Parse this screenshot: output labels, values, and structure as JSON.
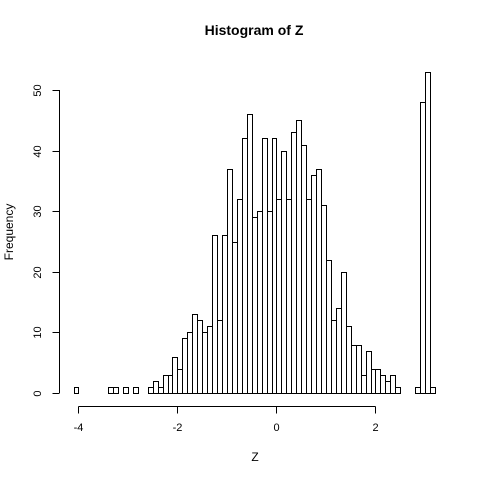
{
  "chart_data": {
    "type": "bar",
    "title": "Histogram of Z",
    "xlabel": "Z",
    "ylabel": "Frequency",
    "x_ticks": [
      -4,
      -2,
      0,
      2
    ],
    "x_tick_labels": [
      "-4",
      "-2",
      "0",
      "2"
    ],
    "y_ticks": [
      0,
      10,
      20,
      30,
      40,
      50
    ],
    "y_tick_labels": [
      "0",
      "10",
      "20",
      "30",
      "40",
      "50"
    ],
    "xlim": [
      -4.2,
      3.2
    ],
    "ylim": [
      0,
      55
    ],
    "bin_width": 0.1,
    "bins": [
      {
        "x0": -4.1,
        "x1": -4.0,
        "count": 1
      },
      {
        "x0": -3.4,
        "x1": -3.3,
        "count": 1
      },
      {
        "x0": -3.3,
        "x1": -3.2,
        "count": 1
      },
      {
        "x0": -3.1,
        "x1": -3.0,
        "count": 1
      },
      {
        "x0": -2.9,
        "x1": -2.8,
        "count": 1
      },
      {
        "x0": -2.6,
        "x1": -2.5,
        "count": 1
      },
      {
        "x0": -2.5,
        "x1": -2.4,
        "count": 2
      },
      {
        "x0": -2.4,
        "x1": -2.3,
        "count": 1
      },
      {
        "x0": -2.3,
        "x1": -2.2,
        "count": 3
      },
      {
        "x0": -2.2,
        "x1": -2.1,
        "count": 3
      },
      {
        "x0": -2.1,
        "x1": -2.0,
        "count": 6
      },
      {
        "x0": -2.0,
        "x1": -1.9,
        "count": 4
      },
      {
        "x0": -1.9,
        "x1": -1.8,
        "count": 9
      },
      {
        "x0": -1.8,
        "x1": -1.7,
        "count": 10
      },
      {
        "x0": -1.7,
        "x1": -1.6,
        "count": 13
      },
      {
        "x0": -1.6,
        "x1": -1.5,
        "count": 12
      },
      {
        "x0": -1.5,
        "x1": -1.4,
        "count": 10
      },
      {
        "x0": -1.4,
        "x1": -1.3,
        "count": 11
      },
      {
        "x0": -1.3,
        "x1": -1.2,
        "count": 26
      },
      {
        "x0": -1.2,
        "x1": -1.1,
        "count": 12
      },
      {
        "x0": -1.1,
        "x1": -1.0,
        "count": 26
      },
      {
        "x0": -1.0,
        "x1": -0.9,
        "count": 37
      },
      {
        "x0": -0.9,
        "x1": -0.8,
        "count": 25
      },
      {
        "x0": -0.8,
        "x1": -0.7,
        "count": 32
      },
      {
        "x0": -0.7,
        "x1": -0.6,
        "count": 42
      },
      {
        "x0": -0.6,
        "x1": -0.5,
        "count": 46
      },
      {
        "x0": -0.5,
        "x1": -0.4,
        "count": 29
      },
      {
        "x0": -0.4,
        "x1": -0.3,
        "count": 30
      },
      {
        "x0": -0.3,
        "x1": -0.2,
        "count": 42
      },
      {
        "x0": -0.2,
        "x1": -0.1,
        "count": 30
      },
      {
        "x0": -0.1,
        "x1": 0.0,
        "count": 42
      },
      {
        "x0": 0.0,
        "x1": 0.1,
        "count": 32
      },
      {
        "x0": 0.1,
        "x1": 0.2,
        "count": 40
      },
      {
        "x0": 0.2,
        "x1": 0.3,
        "count": 32
      },
      {
        "x0": 0.3,
        "x1": 0.4,
        "count": 43
      },
      {
        "x0": 0.4,
        "x1": 0.5,
        "count": 45
      },
      {
        "x0": 0.5,
        "x1": 0.6,
        "count": 41
      },
      {
        "x0": 0.6,
        "x1": 0.7,
        "count": 32
      },
      {
        "x0": 0.7,
        "x1": 0.8,
        "count": 36
      },
      {
        "x0": 0.8,
        "x1": 0.9,
        "count": 37
      },
      {
        "x0": 0.9,
        "x1": 1.0,
        "count": 31
      },
      {
        "x0": 1.0,
        "x1": 1.1,
        "count": 22
      },
      {
        "x0": 1.1,
        "x1": 1.2,
        "count": 12
      },
      {
        "x0": 1.2,
        "x1": 1.3,
        "count": 14
      },
      {
        "x0": 1.3,
        "x1": 1.4,
        "count": 20
      },
      {
        "x0": 1.4,
        "x1": 1.5,
        "count": 11
      },
      {
        "x0": 1.5,
        "x1": 1.6,
        "count": 8
      },
      {
        "x0": 1.6,
        "x1": 1.7,
        "count": 8
      },
      {
        "x0": 1.7,
        "x1": 1.8,
        "count": 3
      },
      {
        "x0": 1.8,
        "x1": 1.9,
        "count": 7
      },
      {
        "x0": 1.9,
        "x1": 2.0,
        "count": 4
      },
      {
        "x0": 2.0,
        "x1": 2.1,
        "count": 4
      },
      {
        "x0": 2.1,
        "x1": 2.2,
        "count": 3
      },
      {
        "x0": 2.2,
        "x1": 2.3,
        "count": 2
      },
      {
        "x0": 2.3,
        "x1": 2.4,
        "count": 3
      },
      {
        "x0": 2.4,
        "x1": 2.5,
        "count": 1
      },
      {
        "x0": 2.8,
        "x1": 2.9,
        "count": 1
      },
      {
        "x0": 2.9,
        "x1": 3.0,
        "count": 48
      },
      {
        "x0": 3.0,
        "x1": 3.1,
        "count": 53
      },
      {
        "x0": 3.1,
        "x1": 3.2,
        "count": 1
      }
    ]
  }
}
